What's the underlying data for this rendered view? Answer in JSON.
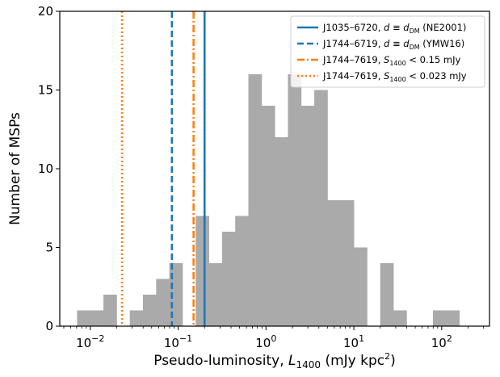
{
  "chart_data": {
    "type": "bar",
    "xlabel": "Pseudo-luminosity, L1400 (mJy kpc2)",
    "xlabel_parts": {
      "prefix": "Pseudo-luminosity, ",
      "var": "L",
      "sub": "1400",
      "unit": " (mJy kpc",
      "sup": "2",
      "close": ")"
    },
    "ylabel": "Number of MSPs",
    "x_scale": "log",
    "xlim": [
      0.0045,
      350
    ],
    "ylim": [
      0,
      20
    ],
    "y_ticks": [
      "0",
      "5",
      "10",
      "15",
      "20"
    ],
    "x_ticks": [
      {
        "value": 0.01,
        "base": "10",
        "exp": "−2"
      },
      {
        "value": 0.1,
        "base": "10",
        "exp": "−1"
      },
      {
        "value": 1,
        "base": "10",
        "exp": "0"
      },
      {
        "value": 10,
        "base": "10",
        "exp": "1"
      },
      {
        "value": 100,
        "base": "10",
        "exp": "2"
      }
    ],
    "histogram": {
      "color": "#aaaaaa",
      "bin_left_edges_log10": [
        -2.15,
        -2.0,
        -1.85,
        -1.7,
        -1.55,
        -1.4,
        -1.25,
        -1.1,
        -0.95,
        -0.8,
        -0.65,
        -0.5,
        -0.35,
        -0.2,
        -0.05,
        0.1,
        0.25,
        0.4,
        0.55,
        0.7,
        0.85,
        1.0,
        1.15,
        1.3,
        1.45,
        1.6,
        1.75,
        1.9,
        2.05
      ],
      "bin_width_log10": 0.15,
      "counts": [
        1,
        1,
        2,
        0,
        1,
        2,
        3,
        4,
        0,
        7,
        4,
        6,
        7,
        16,
        14,
        12,
        16,
        14,
        15,
        8,
        8,
        5,
        0,
        4,
        1,
        0,
        0,
        1,
        1
      ]
    },
    "vlines": [
      {
        "x": 0.2,
        "color": "#1f77b4",
        "style": "solid"
      },
      {
        "x": 0.085,
        "color": "#1f77b4",
        "style": "dashed"
      },
      {
        "x": 0.15,
        "color": "#ff7f0e",
        "style": "dashdot"
      },
      {
        "x": 0.023,
        "color": "#ff7f0e",
        "style": "dotted"
      }
    ],
    "legend": {
      "placement": "top-right",
      "entries": [
        {
          "name": "J1035–6720",
          "sep": ", ",
          "eq_lhs": "d",
          "eq_op": " ≡ ",
          "eq_rhs": "d",
          "eq_rhs_sub": "DM",
          "suffix": " (NE2001)",
          "color": "#1f77b4",
          "style": "solid"
        },
        {
          "name": "J1744–6719",
          "sep": ", ",
          "eq_lhs": "d",
          "eq_op": " ≡ ",
          "eq_rhs": "d",
          "eq_rhs_sub": "DM",
          "suffix": " (YMW16)",
          "color": "#1f77b4",
          "style": "dashed"
        },
        {
          "name": "J1744–7619",
          "sep": ", ",
          "eq_lhs": "S",
          "eq_lhs_sub": "1400",
          "eq_op": " < ",
          "eq_rhs": "0.15 mJy",
          "color": "#ff7f0e",
          "style": "dashdot"
        },
        {
          "name": "J1744–7619",
          "sep": ", ",
          "eq_lhs": "S",
          "eq_lhs_sub": "1400",
          "eq_op": " < ",
          "eq_rhs": "0.023 mJy",
          "color": "#ff7f0e",
          "style": "dotted"
        }
      ]
    }
  }
}
